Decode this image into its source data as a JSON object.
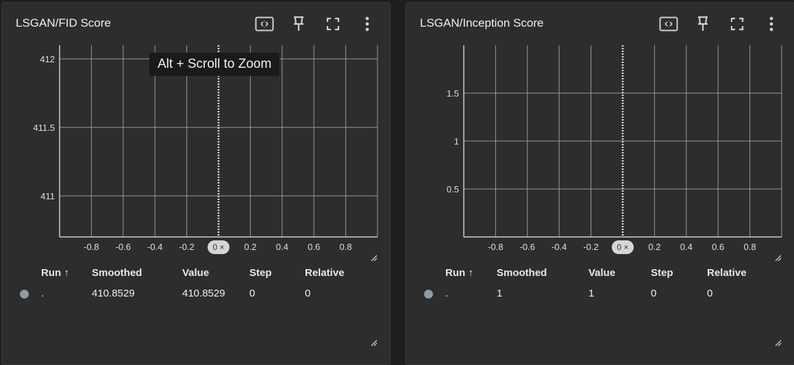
{
  "tooltip": "Alt + Scroll to Zoom",
  "cards": [
    {
      "title": "LSGAN/FID Score",
      "toolbar": [
        "fit-domain-icon",
        "pin-icon",
        "fullscreen-icon",
        "more-vert-icon"
      ],
      "x_axis": {
        "range": [
          -1,
          1
        ],
        "tick_labels": [
          "-0.8",
          "-0.6",
          "-0.4",
          "-0.2",
          "0.2",
          "0.4",
          "0.6",
          "0.8"
        ],
        "origin_chip": "0 ×"
      },
      "y_axis": {
        "range": [
          410.7,
          412.1
        ],
        "tick_labels": [
          "412",
          "411.5",
          "411"
        ]
      },
      "table": {
        "headers": {
          "run": "Run ↑",
          "smoothed": "Smoothed",
          "value": "Value",
          "step": "Step",
          "relative": "Relative"
        },
        "rows": [
          {
            "run": ".",
            "smoothed": "410.8529",
            "value": "410.8529",
            "step": "0",
            "relative": "0"
          }
        ]
      }
    },
    {
      "title": "LSGAN/Inception Score",
      "toolbar": [
        "fit-domain-icon",
        "pin-icon",
        "fullscreen-icon",
        "more-vert-icon"
      ],
      "x_axis": {
        "range": [
          -1,
          1
        ],
        "tick_labels": [
          "-0.8",
          "-0.6",
          "-0.4",
          "-0.2",
          "0.2",
          "0.4",
          "0.6",
          "0.8"
        ],
        "origin_chip": "0 ×"
      },
      "y_axis": {
        "range": [
          0,
          2
        ],
        "tick_labels": [
          "1.5",
          "1",
          "0.5"
        ]
      },
      "table": {
        "headers": {
          "run": "Run ↑",
          "smoothed": "Smoothed",
          "value": "Value",
          "step": "Step",
          "relative": "Relative"
        },
        "rows": [
          {
            "run": ".",
            "smoothed": "1",
            "value": "1",
            "step": "0",
            "relative": "0"
          }
        ]
      }
    }
  ],
  "chart_data": [
    {
      "type": "line",
      "title": "LSGAN/FID Score",
      "x": [
        0
      ],
      "series": [
        {
          "values": [
            410.8529
          ]
        }
      ],
      "xlim": [
        -1,
        1
      ],
      "ylim": [
        410.7,
        412.1
      ],
      "grid": true
    },
    {
      "type": "line",
      "title": "LSGAN/Inception Score",
      "x": [
        0
      ],
      "series": [
        {
          "values": [
            1
          ]
        }
      ],
      "xlim": [
        -1,
        1
      ],
      "ylim": [
        0,
        2
      ],
      "grid": true
    }
  ]
}
